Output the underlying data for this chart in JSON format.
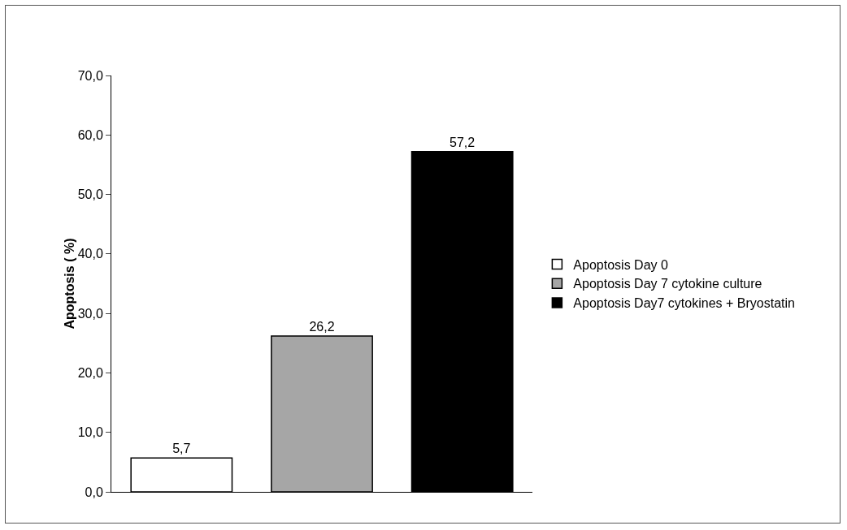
{
  "chart_data": {
    "type": "bar",
    "ylabel": "Apoptosis ( %)",
    "categories": [
      null,
      null,
      null
    ],
    "series": [
      {
        "name": "Apoptosis Day 0",
        "color": "#ffffff",
        "values": [
          5.7,
          null,
          null
        ],
        "value_labels": [
          "5,7",
          null,
          null
        ]
      },
      {
        "name": "Apoptosis Day 7 cytokine culture",
        "color": "#a6a6a6",
        "values": [
          null,
          26.2,
          null
        ],
        "value_labels": [
          null,
          "26,2",
          null
        ]
      },
      {
        "name": "Apoptosis Day7 cytokines + Bryostatin",
        "color": "#000000",
        "values": [
          null,
          null,
          57.2
        ],
        "value_labels": [
          null,
          null,
          "57,2"
        ]
      }
    ],
    "ylim": [
      0,
      70
    ],
    "yticks": [
      {
        "value": 0,
        "label": "0,0"
      },
      {
        "value": 10,
        "label": "10,0"
      },
      {
        "value": 20,
        "label": "20,0"
      },
      {
        "value": 30,
        "label": "30,0"
      },
      {
        "value": 40,
        "label": "40,0"
      },
      {
        "value": 50,
        "label": "50,0"
      },
      {
        "value": 60,
        "label": "60,0"
      },
      {
        "value": 70,
        "label": "70,0"
      }
    ],
    "grid": false,
    "legend": "right"
  }
}
